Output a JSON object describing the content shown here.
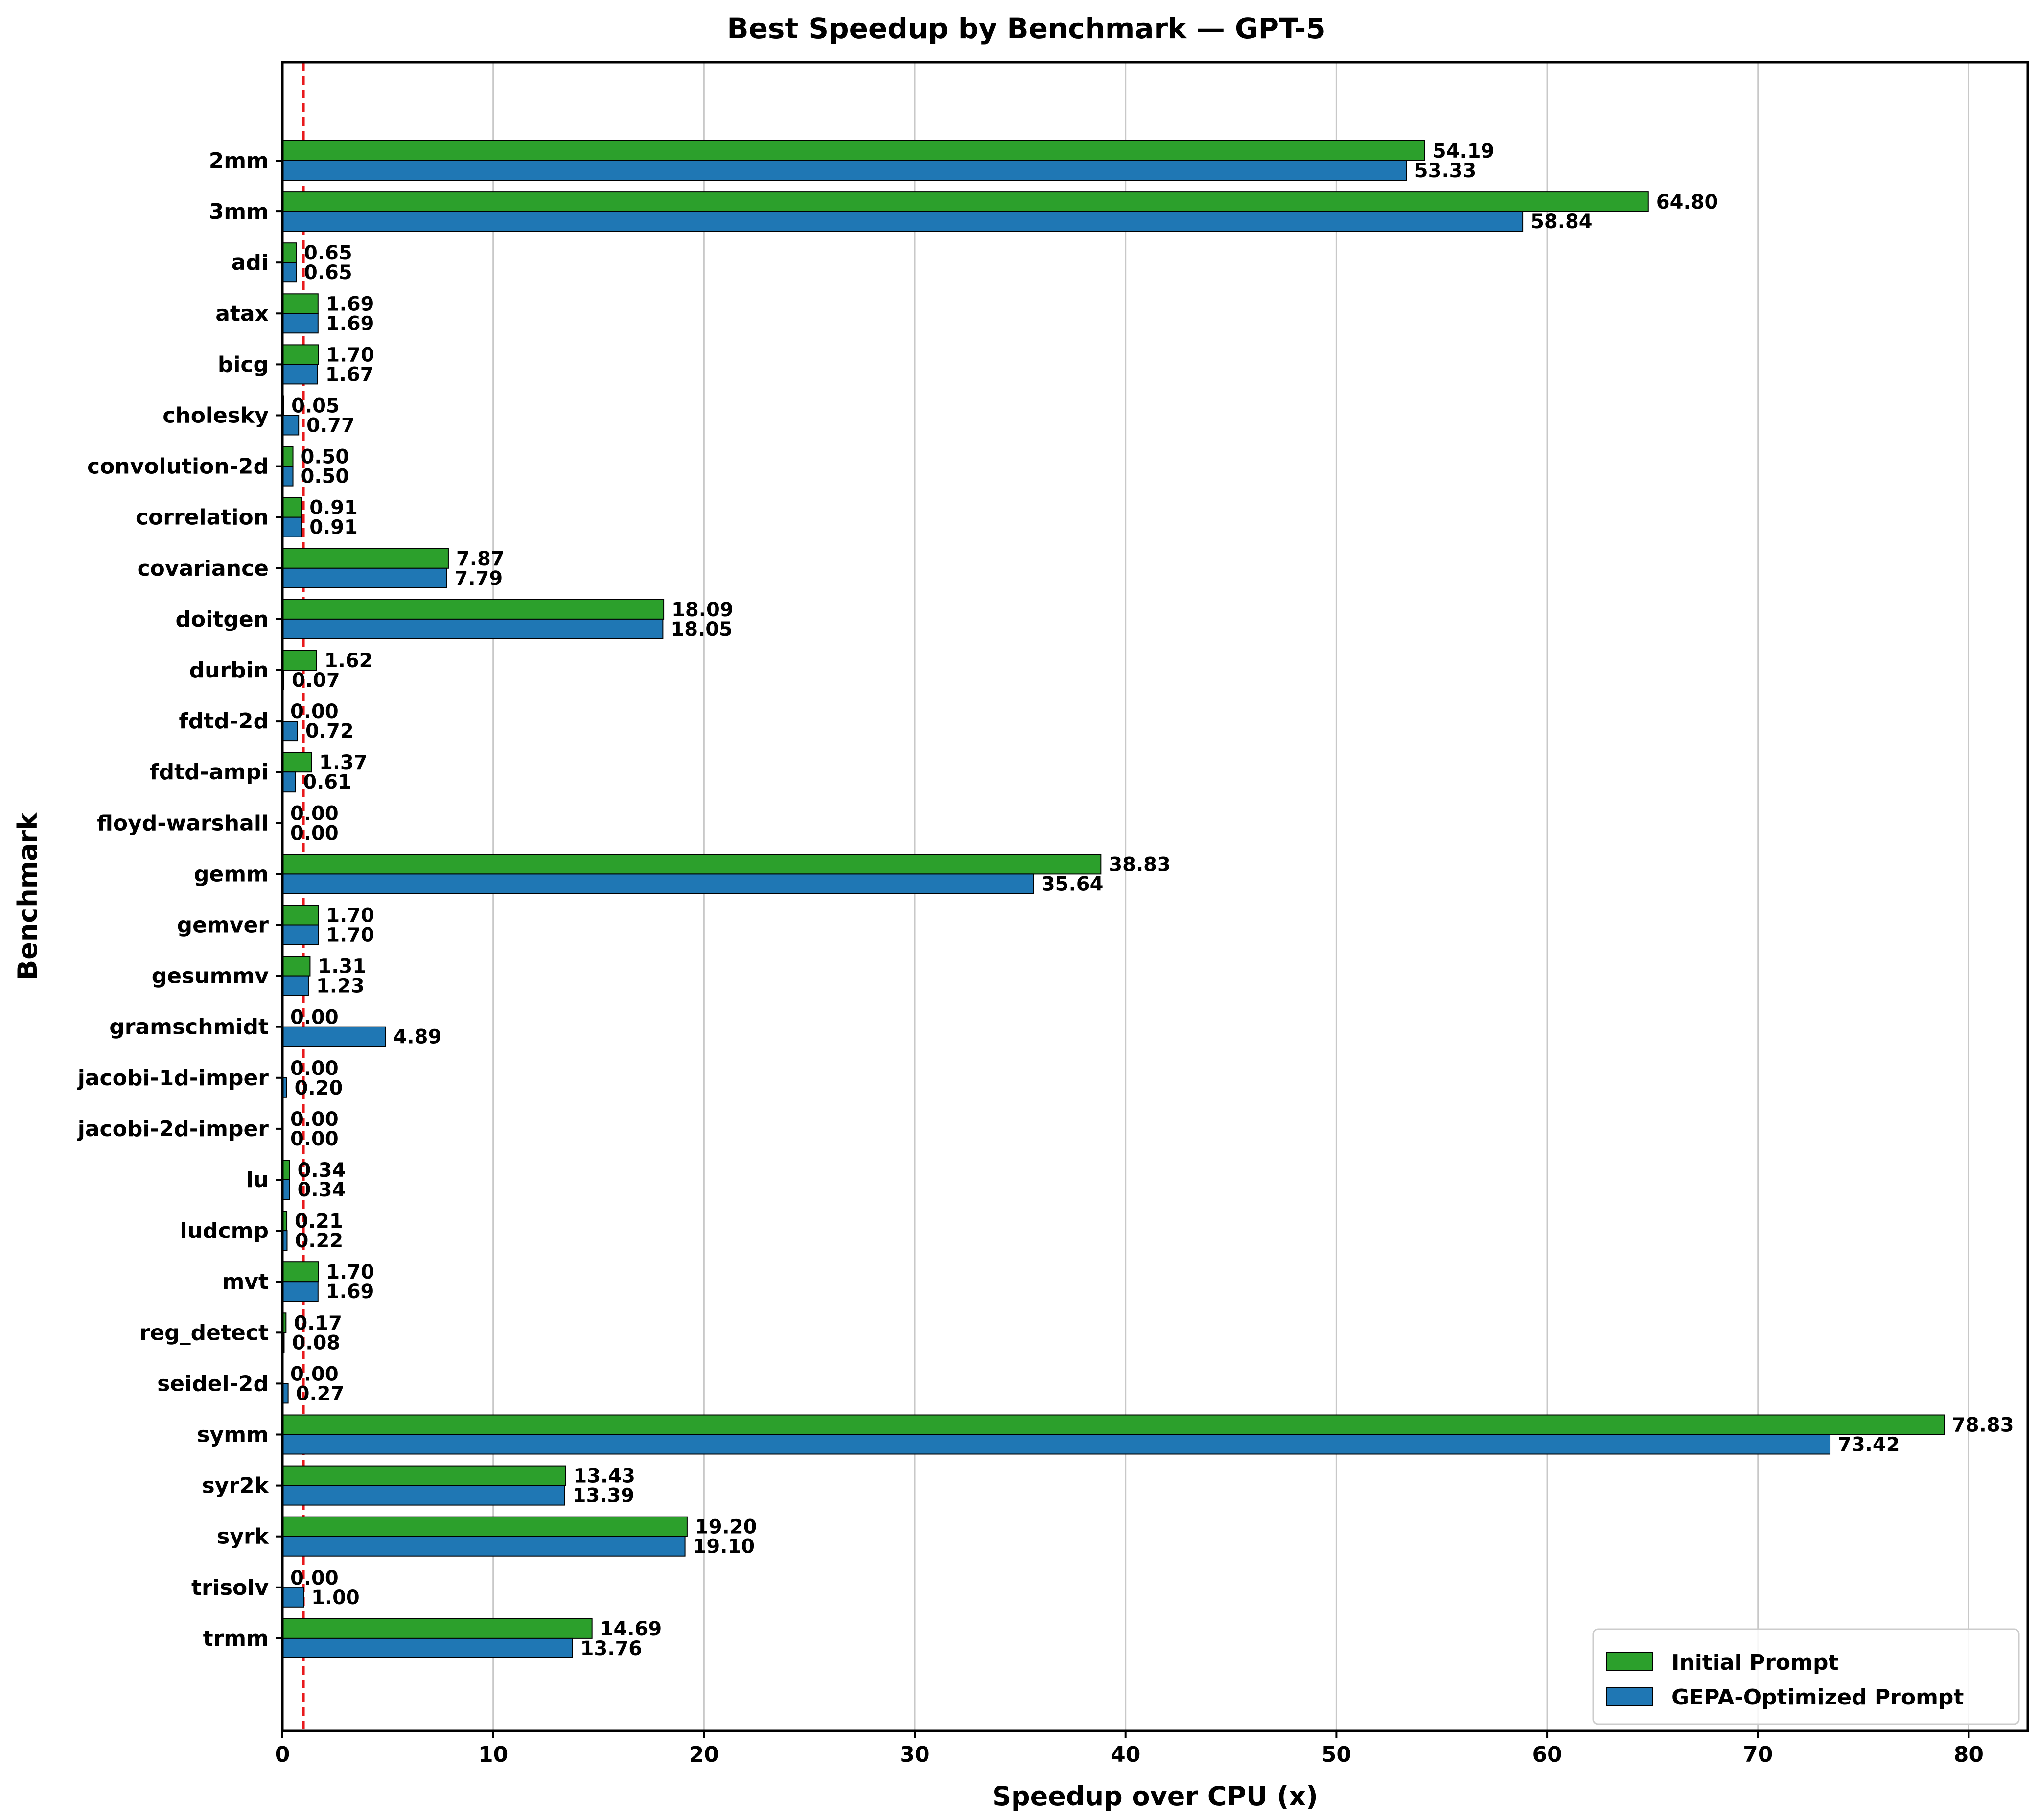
{
  "chart_data": {
    "type": "bar",
    "orientation": "horizontal",
    "title": "Best Speedup by Benchmark — GPT-5",
    "xlabel": "Speedup over CPU (x)",
    "ylabel": "Benchmark",
    "xlim": [
      0,
      82.8
    ],
    "xticks": [
      0,
      10,
      20,
      30,
      40,
      50,
      60,
      70,
      80
    ],
    "grid": "x",
    "reference_line": {
      "x": 1.0,
      "style": "dashed",
      "color": "#e8191c"
    },
    "legend_position": "bottom-right",
    "categories": [
      "2mm",
      "3mm",
      "adi",
      "atax",
      "bicg",
      "cholesky",
      "convolution-2d",
      "correlation",
      "covariance",
      "doitgen",
      "durbin",
      "fdtd-2d",
      "fdtd-ampi",
      "floyd-warshall",
      "gemm",
      "gemver",
      "gesummv",
      "gramschmidt",
      "jacobi-1d-imper",
      "jacobi-2d-imper",
      "lu",
      "ludcmp",
      "mvt",
      "reg_detect",
      "seidel-2d",
      "symm",
      "syr2k",
      "syrk",
      "trisolv",
      "trmm"
    ],
    "series": [
      {
        "name": "Initial Prompt",
        "color": "#2ca02c",
        "values": [
          54.19,
          64.8,
          0.65,
          1.69,
          1.7,
          0.05,
          0.5,
          0.91,
          7.87,
          18.09,
          1.62,
          0.0,
          1.37,
          0.0,
          38.83,
          1.7,
          1.31,
          0.0,
          0.0,
          0.0,
          0.34,
          0.21,
          1.7,
          0.17,
          0.0,
          78.83,
          13.43,
          19.2,
          0.0,
          14.69
        ],
        "labels": [
          "54.19",
          "64.80",
          "0.65",
          "1.69",
          "1.70",
          "0.05",
          "0.50",
          "0.91",
          "7.87",
          "18.09",
          "1.62",
          "0.00",
          "1.37",
          "0.00",
          "38.83",
          "1.70",
          "1.31",
          "0.00",
          "0.00",
          "0.00",
          "0.34",
          "0.21",
          "1.70",
          "0.17",
          "0.00",
          "78.83",
          "13.43",
          "19.20",
          "0.00",
          "14.69"
        ]
      },
      {
        "name": "GEPA-Optimized Prompt",
        "color": "#1f77b4",
        "values": [
          53.33,
          58.84,
          0.65,
          1.69,
          1.67,
          0.77,
          0.5,
          0.91,
          7.79,
          18.05,
          0.07,
          0.72,
          0.61,
          0.0,
          35.64,
          1.7,
          1.23,
          4.89,
          0.2,
          0.0,
          0.34,
          0.22,
          1.69,
          0.08,
          0.27,
          73.42,
          13.39,
          19.1,
          1.0,
          13.76
        ],
        "labels": [
          "53.33",
          "58.84",
          "0.65",
          "1.69",
          "1.67",
          "0.77",
          "0.50",
          "0.91",
          "7.79",
          "18.05",
          "0.07",
          "0.72",
          "0.61",
          "0.00",
          "35.64",
          "1.70",
          "1.23",
          "4.89",
          "0.20",
          "0.00",
          "0.34",
          "0.22",
          "1.69",
          "0.08",
          "0.27",
          "73.42",
          "13.39",
          "19.10",
          "1.00",
          "13.76"
        ]
      }
    ]
  }
}
